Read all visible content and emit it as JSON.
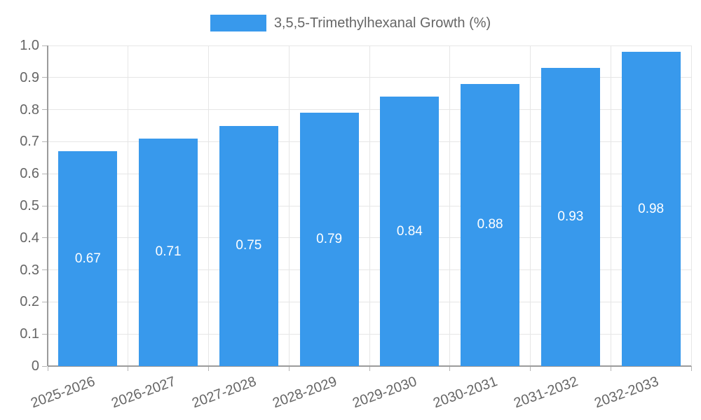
{
  "legend": {
    "label": "3,5,5-Trimethylhexanal Growth (%)"
  },
  "colors": {
    "bar": "#3899ec",
    "grid": "#e6e6e6",
    "axis": "#9b9b9b",
    "tick": "#b5b5b5",
    "text": "#666666",
    "value_label": "#ffffff"
  },
  "chart_data": {
    "type": "bar",
    "title": "3,5,5-Trimethylhexanal Growth (%)",
    "categories": [
      "2025-2026",
      "2026-2027",
      "2027-2028",
      "2028-2029",
      "2029-2030",
      "2030-2031",
      "2031-2032",
      "2032-2033"
    ],
    "values": [
      0.67,
      0.71,
      0.75,
      0.79,
      0.84,
      0.88,
      0.93,
      0.98
    ],
    "value_labels": [
      "0.67",
      "0.71",
      "0.75",
      "0.79",
      "0.84",
      "0.88",
      "0.93",
      "0.98"
    ],
    "xlabel": "",
    "ylabel": "",
    "ylim": [
      0,
      1.0
    ],
    "yticks": [
      0,
      0.1,
      0.2,
      0.3,
      0.4,
      0.5,
      0.6,
      0.7,
      0.8,
      0.9,
      1.0
    ],
    "ytick_labels": [
      "0",
      "0.1",
      "0.2",
      "0.3",
      "0.4",
      "0.5",
      "0.6",
      "0.7",
      "0.8",
      "0.9",
      "1.0"
    ],
    "grid": true,
    "legend_position": "top"
  }
}
